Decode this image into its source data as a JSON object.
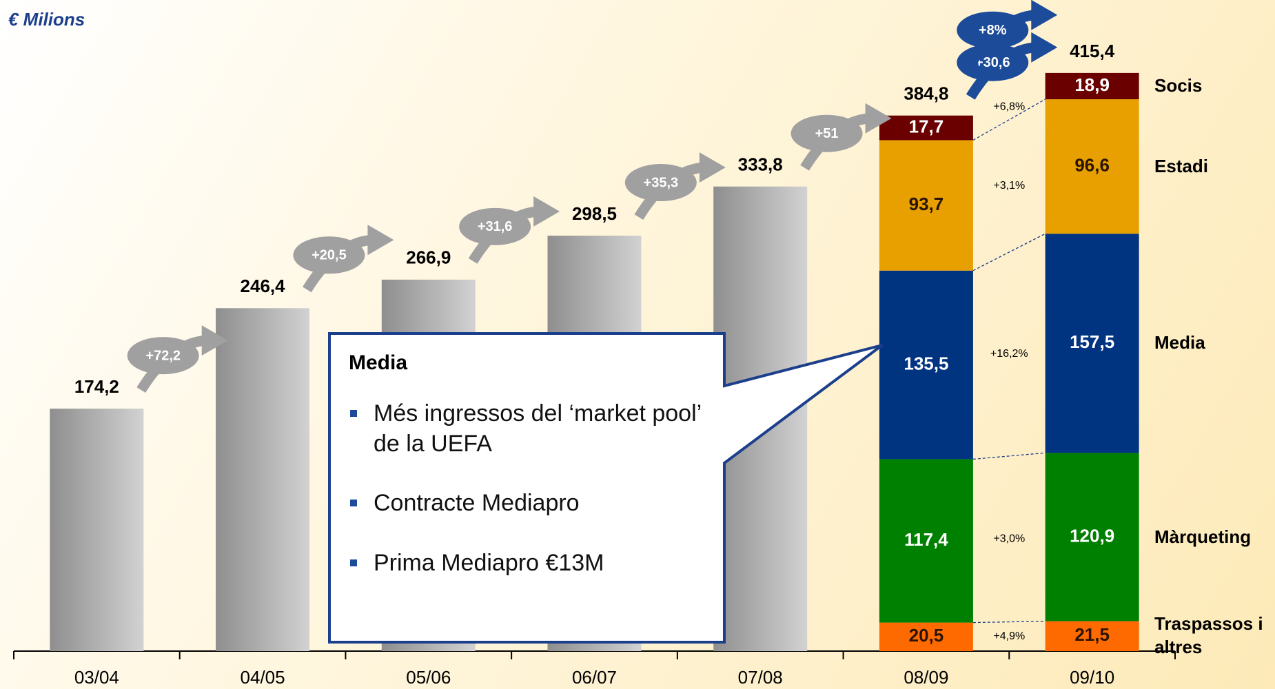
{
  "chart_data": {
    "type": "bar",
    "title": "€ Milions",
    "categories": [
      "03/04",
      "04/05",
      "05/06",
      "06/07",
      "07/08",
      "08/09",
      "09/10"
    ],
    "values": [
      174.2,
      246.4,
      266.9,
      298.5,
      333.8,
      384.8,
      415.4
    ],
    "value_labels": [
      "174,2",
      "246,4",
      "266,9",
      "298,5",
      "333,8",
      "384,8",
      "415,4"
    ],
    "color": "#a6a6a6",
    "ylim": [
      0,
      450
    ],
    "series": [
      {
        "name": "Traspassos i altres",
        "color": "#ff6a00",
        "label_color": "#2a1400",
        "values": [
          null,
          null,
          null,
          null,
          null,
          20.5,
          21.5
        ],
        "value_labels": [
          null,
          null,
          null,
          null,
          null,
          "20,5",
          "21,5"
        ],
        "change": {
          "value": 4.9,
          "label": "+4,9%"
        }
      },
      {
        "name": "Màrqueting",
        "color": "#008000",
        "label_color": "#ffffff",
        "values": [
          null,
          null,
          null,
          null,
          null,
          117.4,
          120.9
        ],
        "value_labels": [
          null,
          null,
          null,
          null,
          null,
          "117,4",
          "120,9"
        ],
        "change": {
          "value": 3.0,
          "label": "+3,0%"
        }
      },
      {
        "name": "Media",
        "color": "#003380",
        "label_color": "#ffffff",
        "values": [
          null,
          null,
          null,
          null,
          null,
          135.5,
          157.5
        ],
        "value_labels": [
          null,
          null,
          null,
          null,
          null,
          "135,5",
          "157,5"
        ],
        "change": {
          "value": 16.2,
          "label": "+16,2%"
        }
      },
      {
        "name": "Estadi",
        "color": "#e8a000",
        "label_color": "#2a1400",
        "values": [
          null,
          null,
          null,
          null,
          null,
          93.7,
          96.6
        ],
        "value_labels": [
          null,
          null,
          null,
          null,
          null,
          "93,7",
          "96,6"
        ],
        "change": {
          "value": 3.1,
          "label": "+3,1%"
        }
      },
      {
        "name": "Socis",
        "color": "#6b0000",
        "label_color": "#ffffff",
        "values": [
          null,
          null,
          null,
          null,
          null,
          17.7,
          18.9
        ],
        "value_labels": [
          null,
          null,
          null,
          null,
          null,
          "17,7",
          "18,9"
        ],
        "change": {
          "value": 6.8,
          "label": "+6,8%"
        }
      }
    ],
    "growth": {
      "values": [
        72.2,
        20.5,
        31.6,
        35.3,
        51,
        30.6
      ],
      "labels": [
        "+72,2",
        "+20,5",
        "+31,6",
        "+35,3",
        "+51",
        "+30,6"
      ],
      "colors": [
        "#a0a0a0",
        "#a0a0a0",
        "#a0a0a0",
        "#a0a0a0",
        "#a0a0a0",
        "#1c4b9a"
      ]
    },
    "total_growth": {
      "value": 8,
      "label": "+8%",
      "color": "#1c4b9a"
    },
    "callout": {
      "title": "Media",
      "bullets": [
        "Més ingressos del ‘market pool’ de la UEFA",
        "Contracte Mediapro",
        "Prima Mediapro €13M"
      ]
    }
  }
}
